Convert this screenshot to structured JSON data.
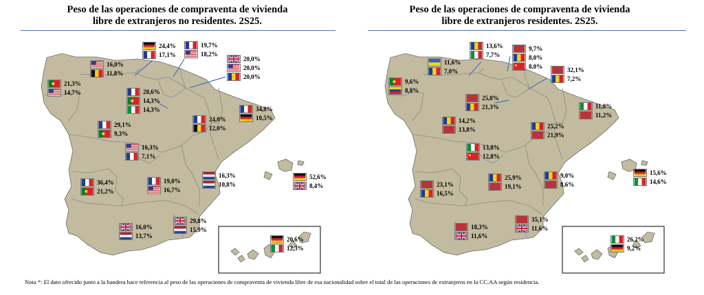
{
  "left": {
    "title_line1": "Peso de las operaciones de compraventa de vivienda",
    "title_line2": "libre de extranjeros no residentes. 2S25.",
    "regions": [
      {
        "id": "galicia",
        "flags": [
          "portugal",
          "usa"
        ],
        "values": [
          "21,3%",
          "14,7%"
        ]
      },
      {
        "id": "asturias",
        "flags": [
          "usa",
          "belgium"
        ],
        "values": [
          "16,0%",
          "11,8%"
        ]
      },
      {
        "id": "cantabria",
        "flags": [
          "germany",
          "france"
        ],
        "values": [
          "24,4%",
          "17,1%"
        ]
      },
      {
        "id": "pais-vasco",
        "flags": [
          "france",
          "usa"
        ],
        "values": [
          "19,7%",
          "18,2%"
        ]
      },
      {
        "id": "navarra",
        "flags": [
          "uk",
          "usa",
          "romania"
        ],
        "values": [
          "20,0%",
          "20,0%",
          "20,0%"
        ]
      },
      {
        "id": "rioja",
        "flags": [
          "france",
          "portugal",
          "italy"
        ],
        "values": [
          "28,6%",
          "14,3%",
          "14,3%"
        ]
      },
      {
        "id": "aragon",
        "flags": [
          "france",
          "belgium"
        ],
        "values": [
          "24,0%",
          "12,0%"
        ]
      },
      {
        "id": "cataluna",
        "flags": [
          "france",
          "germany"
        ],
        "values": [
          "34,8%",
          "10,5%"
        ]
      },
      {
        "id": "castilla-leon",
        "flags": [
          "france",
          "portugal"
        ],
        "values": [
          "29,1%",
          "9,3%"
        ]
      },
      {
        "id": "madrid",
        "flags": [
          "usa",
          "france"
        ],
        "values": [
          "16,3%",
          "7,1%"
        ]
      },
      {
        "id": "extremadura",
        "flags": [
          "france",
          "portugal"
        ],
        "values": [
          "36,4%",
          "21,2%"
        ]
      },
      {
        "id": "castilla-la-mancha",
        "flags": [
          "france",
          "usa"
        ],
        "values": [
          "19,0%",
          "16,7%"
        ]
      },
      {
        "id": "valencia",
        "flags": [
          "netherlands",
          "netherlands"
        ],
        "values": [
          "16,3%",
          "10,8%"
        ]
      },
      {
        "id": "baleares",
        "flags": [
          "germany",
          "uk"
        ],
        "values": [
          "52,6%",
          "8,4%"
        ]
      },
      {
        "id": "andalucia",
        "flags": [
          "uk",
          "netherlands"
        ],
        "values": [
          "16,0%",
          "13,7%"
        ]
      },
      {
        "id": "murcia",
        "flags": [
          "uk",
          "netherlands"
        ],
        "values": [
          "29,8%",
          "15,9%"
        ]
      },
      {
        "id": "canarias",
        "flags": [
          "germany",
          "italy"
        ],
        "values": [
          "20,6%",
          "12,3%"
        ]
      }
    ]
  },
  "right": {
    "title_line1": "Peso de las operaciones de compraventa de vivienda",
    "title_line2": "libre de extranjeros residentes. 2S25.",
    "regions": [
      {
        "id": "galicia",
        "flags": [
          "portugal",
          "venezuela"
        ],
        "values": [
          "9,6%",
          "8,8%"
        ]
      },
      {
        "id": "asturias",
        "flags": [
          "ukraine",
          "romania"
        ],
        "values": [
          "11,6%",
          "7,0%"
        ]
      },
      {
        "id": "cantabria",
        "flags": [
          "romania",
          "italy"
        ],
        "values": [
          "13,6%",
          "7,7%"
        ]
      },
      {
        "id": "pais-vasco",
        "flags": [
          "morocco",
          "romania",
          "china"
        ],
        "values": [
          "9,7%",
          "8,0%",
          "8,0%"
        ]
      },
      {
        "id": "navarra",
        "flags": [
          "morocco",
          "romania"
        ],
        "values": [
          "32,1%",
          "7,2%"
        ]
      },
      {
        "id": "rioja",
        "flags": [
          "morocco",
          "romania"
        ],
        "values": [
          "25,8%",
          "21,3%"
        ]
      },
      {
        "id": "cataluna",
        "flags": [
          "italy",
          "morocco"
        ],
        "values": [
          "11,8%",
          "11,2%"
        ]
      },
      {
        "id": "castilla-leon",
        "flags": [
          "romania",
          "morocco"
        ],
        "values": [
          "14,2%",
          "13,8%"
        ]
      },
      {
        "id": "aragon",
        "flags": [
          "romania",
          "morocco"
        ],
        "values": [
          "25,2%",
          "21,9%"
        ]
      },
      {
        "id": "madrid",
        "flags": [
          "italy",
          "china"
        ],
        "values": [
          "13,8%",
          "12,8%"
        ]
      },
      {
        "id": "castilla-la-mancha",
        "flags": [
          "romania",
          "morocco"
        ],
        "values": [
          "25,9%",
          "19,1%"
        ]
      },
      {
        "id": "extremadura",
        "flags": [
          "morocco",
          "romania"
        ],
        "values": [
          "23,1%",
          "16,5%"
        ]
      },
      {
        "id": "valencia",
        "flags": [
          "romania",
          "morocco"
        ],
        "values": [
          "9,0%",
          "8,6%"
        ]
      },
      {
        "id": "baleares",
        "flags": [
          "germany",
          "italy"
        ],
        "values": [
          "15,6%",
          "14,6%"
        ]
      },
      {
        "id": "andalucia",
        "flags": [
          "morocco",
          "uk"
        ],
        "values": [
          "18,3%",
          "11,6%"
        ]
      },
      {
        "id": "murcia",
        "flags": [
          "morocco",
          "uk"
        ],
        "values": [
          "35,1%",
          "11,6%"
        ]
      },
      {
        "id": "canarias",
        "flags": [
          "italy",
          "germany"
        ],
        "values": [
          "26,2%",
          "9,2%"
        ]
      }
    ]
  },
  "note": "Nota *: El dato ofrecido junto a la bandera hace referencia al peso de las operaciones de compraventa de vivienda libre de esa nacionalidad sobre el total de las operaciones de extranjeros en la CC.AA según residencia.",
  "colors": {
    "land": "#c2bb9f",
    "border": "#6b6b6b",
    "rule": "#4a72b8"
  }
}
